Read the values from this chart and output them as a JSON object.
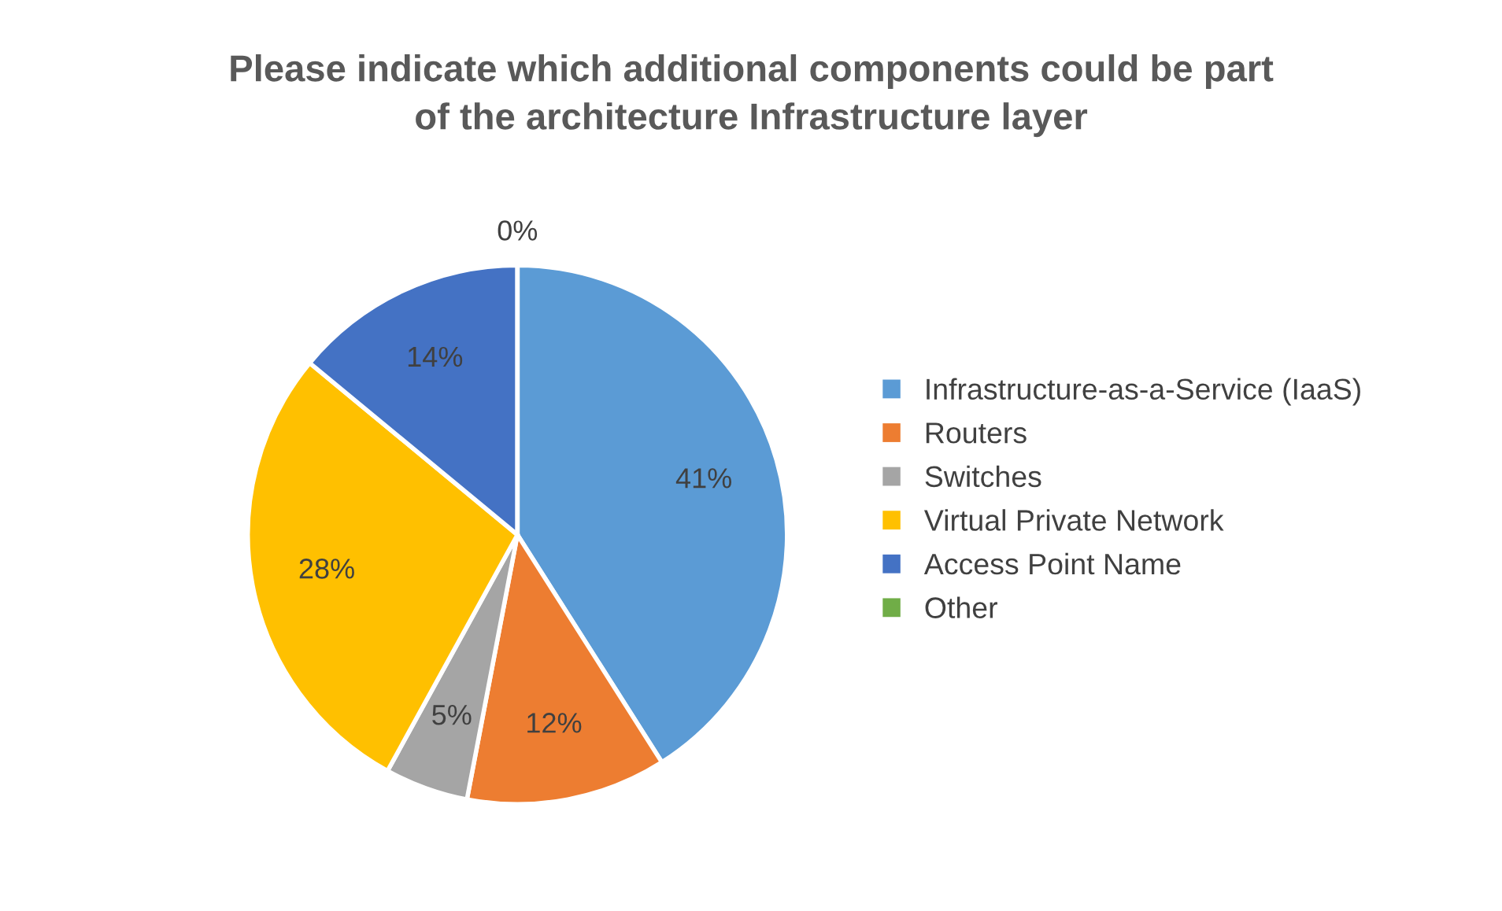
{
  "chart_data": {
    "type": "pie",
    "title": "Please indicate which additional components could be part\nof the architecture Infrastructure layer",
    "categories": [
      "Infrastructure-as-a-Service (IaaS)",
      "Routers",
      "Switches",
      "Virtual Private Network",
      "Access Point Name",
      "Other"
    ],
    "values": [
      41,
      12,
      5,
      28,
      14,
      0
    ],
    "colors": [
      "#5b9bd5",
      "#ed7d31",
      "#a5a5a5",
      "#ffc000",
      "#4472c4",
      "#70ad47"
    ],
    "value_labels": [
      "41%",
      "12%",
      "5%",
      "28%",
      "14%",
      "0%"
    ],
    "legend": "right"
  }
}
